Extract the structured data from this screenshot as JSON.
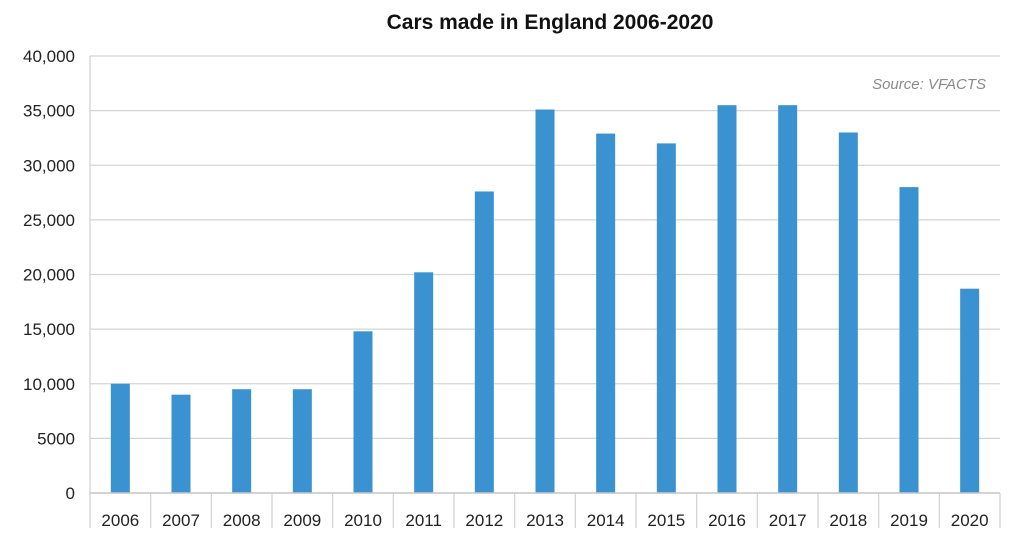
{
  "chart_data": {
    "type": "bar",
    "title": "Cars made in England 2006-2020",
    "source": "Source: VFACTS",
    "categories": [
      "2006",
      "2007",
      "2008",
      "2009",
      "2010",
      "2011",
      "2012",
      "2013",
      "2014",
      "2015",
      "2016",
      "2017",
      "2018",
      "2019",
      "2020"
    ],
    "values": [
      10000,
      9000,
      9500,
      9500,
      14800,
      20200,
      27600,
      35100,
      32900,
      32000,
      35500,
      35500,
      33000,
      28000,
      18700
    ],
    "ylim": [
      0,
      40000
    ],
    "yticks": [
      0,
      5000,
      10000,
      15000,
      20000,
      25000,
      30000,
      35000,
      40000
    ],
    "ytick_labels": [
      "0",
      "5000",
      "10,000",
      "15,000",
      "20,000",
      "25,000",
      "30,000",
      "35,000",
      "40,000"
    ],
    "xlabel": "",
    "ylabel": "",
    "grid": true,
    "bar_color": "#3a93d0"
  }
}
